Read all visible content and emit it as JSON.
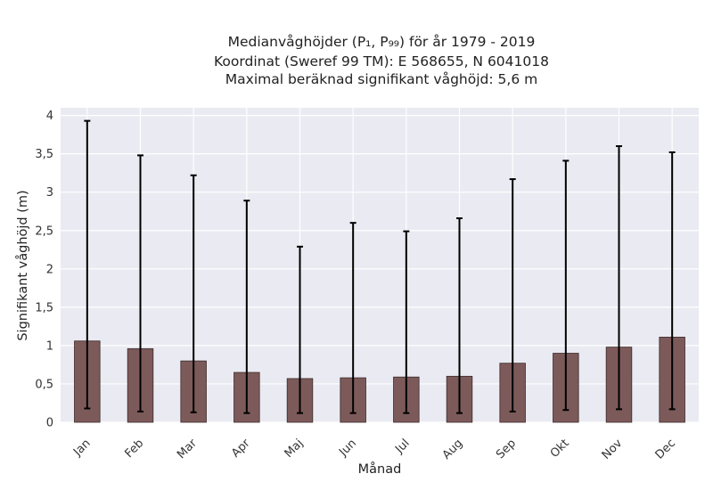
{
  "chart_data": {
    "type": "bar",
    "title_lines": [
      "Medianvåghöjder (P₁, P₉₉) för år 1979 - 2019",
      "Koordinat (Sweref 99 TM): E 568655, N 6041018",
      "Maximal beräknad signifikant våghöjd: 5,6 m"
    ],
    "xlabel": "Månad",
    "ylabel": "Signifikant våghöjd (m)",
    "categories": [
      "Jan",
      "Feb",
      "Mar",
      "Apr",
      "Maj",
      "Jun",
      "Jul",
      "Aug",
      "Sep",
      "Okt",
      "Nov",
      "Dec"
    ],
    "values": [
      1.06,
      0.96,
      0.8,
      0.65,
      0.57,
      0.58,
      0.59,
      0.6,
      0.77,
      0.9,
      0.98,
      1.11
    ],
    "error_low": [
      0.18,
      0.14,
      0.13,
      0.12,
      0.12,
      0.12,
      0.12,
      0.12,
      0.14,
      0.16,
      0.17,
      0.17
    ],
    "error_high": [
      3.93,
      3.48,
      3.22,
      2.89,
      2.29,
      2.6,
      2.49,
      2.66,
      3.17,
      3.41,
      3.6,
      3.52
    ],
    "ylim": [
      0,
      4.1
    ],
    "yticks": [
      0,
      0.5,
      1,
      1.5,
      2,
      2.5,
      3,
      3.5,
      4
    ],
    "ytick_labels": [
      "0",
      "0,5",
      "1",
      "1,5",
      "2",
      "2,5",
      "3",
      "3,5",
      "4"
    ],
    "grid": true,
    "colors": {
      "bar": "#7d5a5a",
      "bar_edge": "#3a2a2a",
      "plot_bg": "#eaeaf2",
      "grid": "#ffffff",
      "error_bar": "#000000"
    }
  }
}
